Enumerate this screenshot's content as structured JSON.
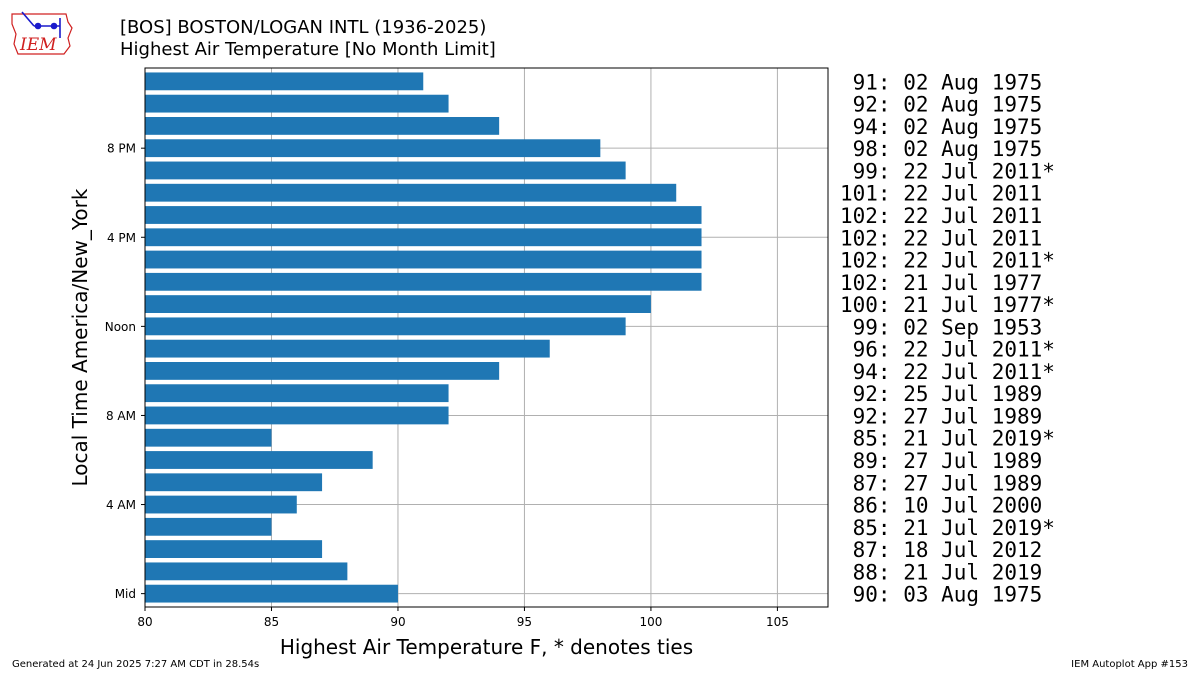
{
  "header": {
    "title_line1": "[BOS] BOSTON/LOGAN INTL (1936-2025)",
    "title_line2": "Highest Air Temperature [No Month Limit]",
    "logo_text": "IEM"
  },
  "footer": {
    "left": "Generated at 24 Jun 2025 7:27 AM CDT in 28.54s",
    "right": "IEM Autoplot App #153"
  },
  "colors": {
    "bar": "#1f77b4",
    "grid": "#b0b0b0",
    "logo": "#d02020"
  },
  "chart_data": {
    "type": "bar",
    "orientation": "horizontal",
    "xlabel": "Highest Air Temperature F, * denotes ties",
    "ylabel": "Local Time America/New_York",
    "xlim": [
      80,
      107
    ],
    "xticks": [
      80,
      85,
      90,
      95,
      100,
      105
    ],
    "grid": true,
    "hours": [
      0,
      1,
      2,
      3,
      4,
      5,
      6,
      7,
      8,
      9,
      10,
      11,
      12,
      13,
      14,
      15,
      16,
      17,
      18,
      19,
      20,
      21,
      22,
      23
    ],
    "yticks": [
      {
        "hour": 0,
        "label": "Mid"
      },
      {
        "hour": 4,
        "label": "4 AM"
      },
      {
        "hour": 8,
        "label": "8 AM"
      },
      {
        "hour": 12,
        "label": "Noon"
      },
      {
        "hour": 16,
        "label": "4 PM"
      },
      {
        "hour": 20,
        "label": "8 PM"
      }
    ],
    "values": [
      90,
      88,
      87,
      85,
      86,
      87,
      89,
      85,
      92,
      92,
      94,
      96,
      99,
      100,
      102,
      102,
      102,
      102,
      101,
      99,
      98,
      94,
      92,
      91
    ],
    "annotations": [
      " 90: 03 Aug 1975",
      " 88: 21 Jul 2019",
      " 87: 18 Jul 2012",
      " 85: 21 Jul 2019*",
      " 86: 10 Jul 2000",
      " 87: 27 Jul 1989",
      " 89: 27 Jul 1989",
      " 85: 21 Jul 2019*",
      " 92: 27 Jul 1989",
      " 92: 25 Jul 1989",
      " 94: 22 Jul 2011*",
      " 96: 22 Jul 2011*",
      " 99: 02 Sep 1953",
      "100: 21 Jul 1977*",
      "102: 21 Jul 1977",
      "102: 22 Jul 2011*",
      "102: 22 Jul 2011",
      "102: 22 Jul 2011",
      "101: 22 Jul 2011",
      " 99: 22 Jul 2011*",
      " 98: 02 Aug 1975",
      " 94: 02 Aug 1975",
      " 92: 02 Aug 1975",
      " 91: 02 Aug 1975"
    ]
  }
}
